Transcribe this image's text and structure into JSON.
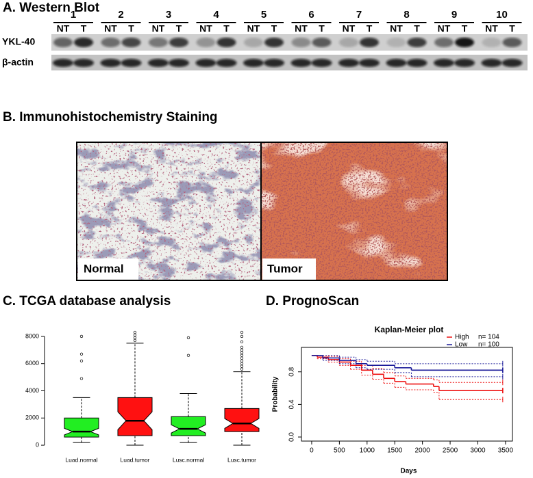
{
  "western_blot": {
    "title": "A. Western Blot",
    "lanes": [
      "1",
      "2",
      "3",
      "4",
      "5",
      "6",
      "7",
      "8",
      "9",
      "10"
    ],
    "conditions": [
      "NT",
      "T"
    ],
    "rows": [
      "YKL-40",
      "β-actin"
    ]
  },
  "ihc": {
    "title": "B. Immunohistochemistry Staining",
    "images": [
      {
        "label": "Normal"
      },
      {
        "label": "Tumor"
      }
    ]
  },
  "chart_data": [
    {
      "type": "box",
      "title": "C. TCGA database analysis",
      "categories": [
        "Luad.normal",
        "Luad.tumor",
        "Lusc.normal",
        "Lusc.tumor"
      ],
      "colors": [
        "#22ee22",
        "#ff1111",
        "#22ee22",
        "#ff1111"
      ],
      "values": [
        {
          "min": 200,
          "q1": 600,
          "median": 1000,
          "q3": 2000,
          "max": 3500,
          "outliers": [
            4900,
            6200,
            6700,
            8000
          ]
        },
        {
          "min": 0,
          "q1": 700,
          "median": 1800,
          "q3": 3500,
          "max": 7500,
          "outliers": [
            7700,
            7900,
            8100,
            8300
          ]
        },
        {
          "min": 200,
          "q1": 700,
          "median": 1200,
          "q3": 2100,
          "max": 3800,
          "outliers": [
            6600,
            7900
          ]
        },
        {
          "min": 0,
          "q1": 1000,
          "median": 1600,
          "q3": 2700,
          "max": 5400,
          "outliers": [
            5600,
            5800,
            6000,
            6200,
            6400,
            6600,
            6800,
            7000,
            7200,
            7600,
            8000,
            8300
          ]
        }
      ],
      "ylim": [
        -450,
        8600
      ],
      "yticks": [
        0,
        2000,
        4000,
        6000,
        8000
      ]
    },
    {
      "type": "km",
      "title": "D. PrognoScan",
      "subtitle": "Kaplan-Meier plot",
      "x_label": "Days",
      "y_label": "Probability",
      "legend": "top-right",
      "series": [
        {
          "name": "High",
          "count_label": "n= 104",
          "color": "#ee1111",
          "x": [
            0,
            100,
            300,
            500,
            700,
            900,
            1100,
            1300,
            1500,
            1700,
            2200,
            2300,
            3450
          ],
          "values": [
            1.0,
            0.98,
            0.95,
            0.92,
            0.88,
            0.82,
            0.77,
            0.72,
            0.68,
            0.65,
            0.62,
            0.57,
            0.57
          ],
          "lower": [
            1.0,
            0.96,
            0.92,
            0.88,
            0.83,
            0.76,
            0.71,
            0.66,
            0.61,
            0.58,
            0.55,
            0.46,
            0.46
          ],
          "upper": [
            1.0,
            1.0,
            0.99,
            0.96,
            0.93,
            0.88,
            0.84,
            0.79,
            0.75,
            0.72,
            0.7,
            0.67,
            0.67
          ]
        },
        {
          "name": "Low",
          "count_label": "n= 100",
          "color": "#1a1a99",
          "x": [
            0,
            200,
            500,
            800,
            1000,
            1500,
            1800,
            3450
          ],
          "values": [
            1.0,
            0.97,
            0.94,
            0.9,
            0.88,
            0.85,
            0.82,
            0.82
          ],
          "lower": [
            1.0,
            0.94,
            0.9,
            0.85,
            0.83,
            0.79,
            0.74,
            0.74
          ],
          "upper": [
            1.0,
            1.0,
            0.98,
            0.95,
            0.93,
            0.9,
            0.9,
            0.9
          ]
        }
      ],
      "xlim": [
        -185,
        3625
      ],
      "ylim": [
        -0.05,
        1.1
      ],
      "xticks": [
        0,
        500,
        1000,
        1500,
        2000,
        2500,
        3000,
        3500
      ],
      "yticks": [
        {
          "value": 0,
          "label": "0.0"
        },
        0.4,
        0.8
      ]
    }
  ]
}
